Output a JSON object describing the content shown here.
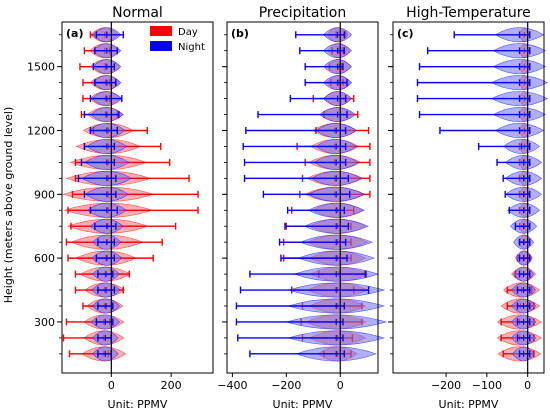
{
  "figure": {
    "ylabel": "Height (meters above ground level)",
    "legend": [
      {
        "label": "Day",
        "color": "#ff0000"
      },
      {
        "label": "Night",
        "color": "#0000ff"
      }
    ],
    "legend_location": "top-right of panel (a)",
    "series_colors": {
      "day_fill": "#f26b6b",
      "night_fill": "#6f6ff2",
      "day_line": "#ff0000",
      "night_line": "#0000ff"
    }
  },
  "chart_data": [
    {
      "type": "violin",
      "title": "Normal",
      "panel_label": "(a)",
      "xlabel": "Unit: PPMV",
      "ylabel": "Height (meters above ground level)",
      "xlim": [
        -165,
        340
      ],
      "xticks": [
        0,
        200
      ],
      "ylim": [
        60,
        1710
      ],
      "yticks": [
        300,
        600,
        900,
        1200,
        1500
      ],
      "heights": [
        150,
        225,
        300,
        375,
        450,
        525,
        600,
        675,
        750,
        825,
        900,
        975,
        1050,
        1125,
        1200,
        1275,
        1350,
        1425,
        1500,
        1575,
        1650
      ],
      "series": [
        {
          "name": "Day",
          "min": [
            -140,
            -160,
            -150,
            -95,
            -120,
            -120,
            -145,
            -150,
            -135,
            -145,
            -130,
            -120,
            -120,
            -90,
            -60,
            -100,
            -95,
            -95,
            -105,
            -90,
            -70
          ],
          "max": [
            -10,
            0,
            -5,
            5,
            40,
            60,
            140,
            170,
            215,
            290,
            290,
            260,
            195,
            165,
            120,
            20,
            -5,
            -5,
            -20,
            -5,
            -15
          ],
          "median": [
            -25,
            -25,
            -25,
            -22,
            -22,
            -20,
            -18,
            -15,
            -12,
            -10,
            -10,
            -10,
            -10,
            -10,
            -10,
            -20,
            -20,
            -20,
            -20,
            -22,
            -22
          ],
          "width": [
            22,
            20,
            20,
            18,
            20,
            25,
            30,
            36,
            40,
            44,
            45,
            42,
            38,
            32,
            25,
            18,
            16,
            15,
            15,
            15,
            14
          ]
        },
        {
          "name": "Night",
          "min": [
            -45,
            -45,
            -50,
            -45,
            -45,
            -45,
            -50,
            -45,
            -55,
            -70,
            -90,
            -110,
            -100,
            -90,
            -70,
            -90,
            -70,
            -55,
            -60,
            -55,
            -50
          ],
          "max": [
            0,
            0,
            5,
            5,
            10,
            5,
            10,
            10,
            15,
            20,
            15,
            15,
            10,
            10,
            20,
            25,
            35,
            15,
            10,
            20,
            40
          ],
          "median": [
            -20,
            -20,
            -20,
            -18,
            -18,
            -18,
            -15,
            -15,
            -15,
            -15,
            -15,
            -15,
            -15,
            -15,
            -15,
            -15,
            -15,
            -15,
            -15,
            -15,
            -15
          ],
          "width": [
            18,
            18,
            18,
            16,
            18,
            20,
            22,
            25,
            28,
            30,
            28,
            25,
            22,
            20,
            18,
            16,
            15,
            14,
            14,
            14,
            14
          ]
        }
      ]
    },
    {
      "type": "violin",
      "title": "Precipitation",
      "panel_label": "(b)",
      "xlabel": "Unit: PPMV",
      "xlim": [
        -420,
        140
      ],
      "xticks": [
        -400,
        -200,
        0
      ],
      "ylim": [
        60,
        1710
      ],
      "yticks": [
        300,
        600,
        900,
        1200,
        1500
      ],
      "heights": [
        150,
        225,
        300,
        375,
        450,
        525,
        600,
        675,
        750,
        825,
        900,
        975,
        1050,
        1125,
        1200,
        1275,
        1350,
        1425,
        1500,
        1575,
        1650
      ],
      "series": [
        {
          "name": "Day",
          "min": [
            -60,
            -140,
            -145,
            -140,
            -180,
            -80,
            -210,
            -210,
            -200,
            -180,
            -150,
            -140,
            -130,
            -160,
            -90,
            -60,
            -100,
            -35,
            -40,
            -30,
            -15
          ],
          "max": [
            40,
            45,
            80,
            80,
            50,
            90,
            40,
            40,
            40,
            50,
            110,
            110,
            110,
            110,
            105,
            65,
            50,
            10,
            5,
            10,
            20
          ],
          "median": [
            -10,
            -10,
            -15,
            -10,
            -10,
            -5,
            -10,
            -10,
            -10,
            -10,
            -20,
            -20,
            -20,
            -20,
            -20,
            -10,
            -10,
            -5,
            -5,
            -5,
            -10
          ],
          "width": [
            25,
            28,
            30,
            28,
            30,
            30,
            28,
            30,
            28,
            25,
            30,
            28,
            26,
            24,
            22,
            16,
            14,
            12,
            12,
            12,
            12
          ]
        },
        {
          "name": "Night",
          "min": [
            -335,
            -380,
            -385,
            -385,
            -370,
            -335,
            -220,
            -225,
            -205,
            -195,
            -285,
            -355,
            -355,
            -360,
            -350,
            -305,
            -185,
            -130,
            -130,
            -150,
            -165
          ],
          "max": [
            15,
            10,
            10,
            15,
            105,
            95,
            25,
            20,
            30,
            15,
            35,
            30,
            20,
            20,
            20,
            25,
            20,
            25,
            10,
            15,
            15
          ],
          "median": [
            -15,
            -15,
            -15,
            -15,
            -15,
            -15,
            -15,
            -15,
            -15,
            -15,
            -15,
            -15,
            -15,
            -15,
            -15,
            -10,
            -10,
            -10,
            -10,
            -10,
            -10
          ],
          "width": [
            40,
            48,
            50,
            48,
            48,
            42,
            38,
            36,
            32,
            28,
            28,
            25,
            22,
            20,
            20,
            18,
            14,
            14,
            14,
            14,
            14
          ]
        }
      ]
    },
    {
      "type": "violin",
      "title": "High-Temperature",
      "panel_label": "(c)",
      "xlabel": "Unit: PPMV",
      "xlim": [
        -330,
        40
      ],
      "xticks": [
        -200,
        -100,
        0
      ],
      "ylim": [
        60,
        1710
      ],
      "yticks": [
        300,
        600,
        900,
        1200,
        1500
      ],
      "heights": [
        150,
        225,
        300,
        375,
        450,
        525,
        600,
        675,
        750,
        825,
        900,
        975,
        1050,
        1125,
        1200,
        1275,
        1350,
        1425,
        1500,
        1575,
        1650
      ],
      "series": [
        {
          "name": "Day",
          "min": [
            -60,
            -65,
            -65,
            -50,
            -50,
            -30,
            -25,
            -20,
            -20,
            -20,
            -20,
            -20,
            -20,
            -20,
            -20,
            -20,
            -20,
            -20,
            -20,
            -20,
            -20
          ],
          "max": [
            15,
            15,
            15,
            15,
            10,
            5,
            5,
            5,
            5,
            5,
            5,
            5,
            5,
            5,
            5,
            5,
            5,
            5,
            5,
            5,
            5
          ],
          "median": [
            -20,
            -20,
            -20,
            -18,
            -15,
            -10,
            -8,
            -8,
            -8,
            -8,
            -8,
            -8,
            -8,
            -8,
            -8,
            -8,
            -8,
            -8,
            -8,
            -8,
            -8
          ],
          "width": [
            22,
            22,
            22,
            20,
            18,
            12,
            8,
            6,
            5,
            5,
            5,
            5,
            5,
            5,
            5,
            5,
            5,
            5,
            5,
            5,
            5
          ]
        },
        {
          "name": "Night",
          "min": [
            -20,
            -25,
            -25,
            -25,
            -25,
            -20,
            -20,
            -20,
            -30,
            -45,
            -55,
            -60,
            -75,
            -120,
            -215,
            -265,
            -270,
            -270,
            -265,
            -245,
            -180
          ],
          "max": [
            5,
            5,
            5,
            5,
            5,
            5,
            5,
            5,
            5,
            5,
            5,
            5,
            5,
            5,
            5,
            5,
            5,
            5,
            5,
            5,
            5
          ],
          "median": [
            -10,
            -10,
            -10,
            -10,
            -10,
            -10,
            -10,
            -10,
            -10,
            -10,
            -10,
            -10,
            -10,
            -15,
            -20,
            -20,
            -20,
            -20,
            -20,
            -20,
            -20
          ],
          "width": [
            14,
            14,
            14,
            14,
            14,
            10,
            8,
            10,
            14,
            16,
            18,
            18,
            18,
            18,
            24,
            26,
            28,
            28,
            26,
            26,
            24
          ]
        }
      ]
    }
  ]
}
